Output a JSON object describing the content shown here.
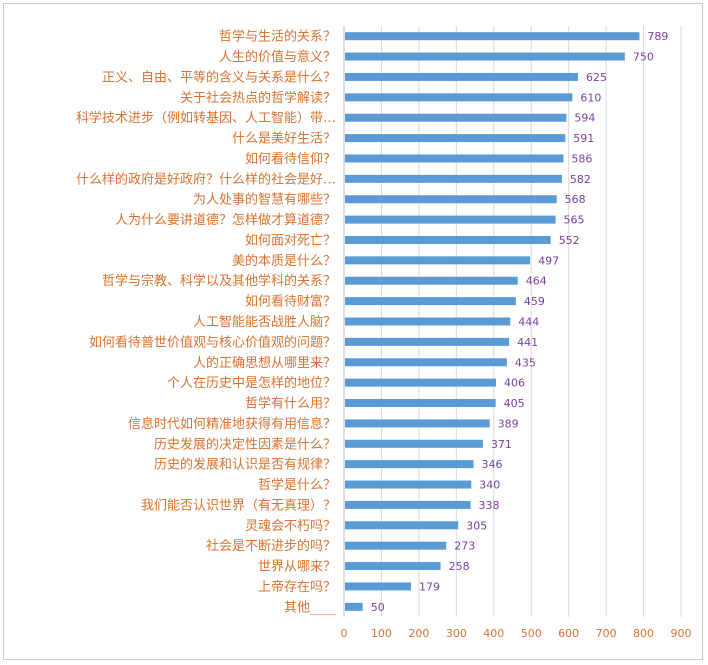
{
  "chart_data": {
    "type": "bar",
    "orientation": "horizontal",
    "categories": [
      "哲学与生活的关系？",
      "人生的价值与意义？",
      "正义、自由、平等的含义与关系是什么？",
      "关于社会热点的哲学解读？",
      "科学技术进步（例如转基因、人工智能）带…",
      "什么是美好生活？",
      "如何看待信仰？",
      "什么样的政府是好政府？什么样的社会是好…",
      "为人处事的智慧有哪些？",
      "人为什么要讲道德？怎样做才算道德？",
      "如何面对死亡？",
      "美的本质是什么？",
      "哲学与宗教、科学以及其他学科的关系？",
      "如何看待财富？",
      "人工智能能否战胜人脑？",
      "如何看待普世价值观与核心价值观的问题？",
      "人的正确思想从哪里来？",
      "个人在历史中是怎样的地位？",
      "哲学有什么用？",
      "信息时代如何精准地获得有用信息？",
      "历史发展的决定性因素是什么？",
      "历史的发展和认识是否有规律？",
      "哲学是什么？",
      "我们能否认识世界（有无真理）？",
      "灵魂会不朽吗？",
      "社会是不断进步的吗？",
      "世界从哪来？",
      "上帝存在吗？",
      "其他____"
    ],
    "values": [
      789,
      750,
      625,
      610,
      594,
      591,
      586,
      582,
      568,
      565,
      552,
      497,
      464,
      459,
      444,
      441,
      435,
      406,
      405,
      389,
      371,
      346,
      340,
      338,
      305,
      273,
      258,
      179,
      50
    ],
    "xlim": [
      0,
      900
    ],
    "xticks": [
      0,
      100,
      200,
      300,
      400,
      500,
      600,
      700,
      800,
      900
    ],
    "grid": true,
    "data_labels": true,
    "legend": "none",
    "colors": {
      "bar": "#5b9bd5",
      "category_text": "#d9722f",
      "value_text": "#7a3fa0",
      "tick_text": "#d9722f",
      "grid": "#d9d9d9"
    }
  }
}
